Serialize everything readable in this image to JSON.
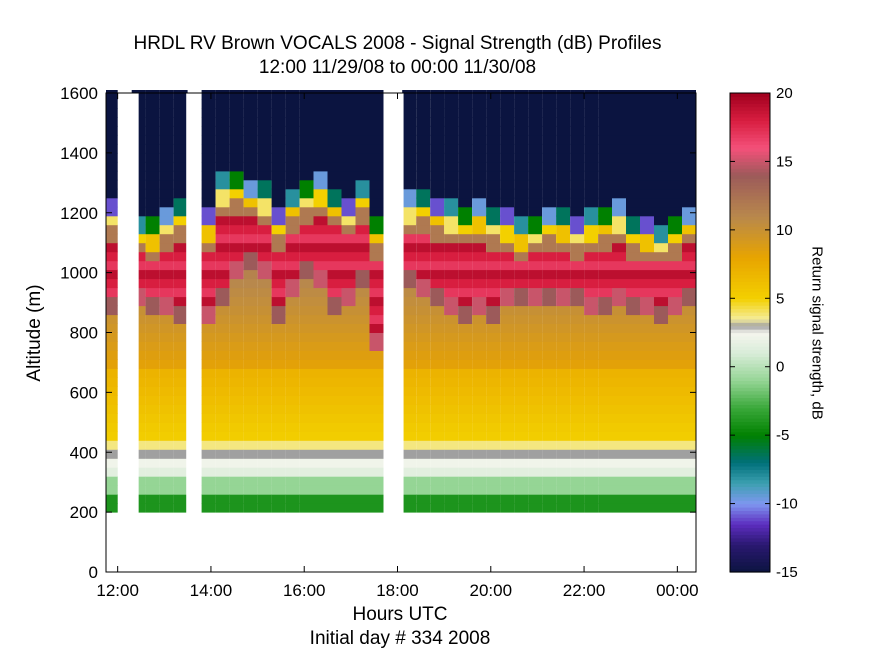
{
  "chart_data": {
    "type": "heatmap",
    "title": "HRDL RV Brown VOCALS 2008 - Signal Strength (dB) Profiles",
    "subtitle": "12:00 11/29/08 to 00:00 11/30/08",
    "xlabel": "Hours UTC",
    "ylabel": "Altitude (m)",
    "footer": "Initial day # 334  2008",
    "colorbar_label": "Return signal strength, dB",
    "x_tick_labels": [
      "12:00",
      "14:00",
      "16:00",
      "18:00",
      "20:00",
      "22:00",
      "00:00"
    ],
    "x_tick_hours": [
      12,
      14,
      16,
      18,
      20,
      22,
      24
    ],
    "xlim": [
      11.75,
      24.4
    ],
    "y_ticks": [
      0,
      200,
      400,
      600,
      800,
      1000,
      1200,
      1400,
      1600
    ],
    "ylim": [
      0,
      1600
    ],
    "colorbar_ticks": [
      20,
      15,
      10,
      5,
      0,
      -5,
      -10,
      -15
    ],
    "clim": [
      -15,
      20
    ],
    "colormap_stops": [
      {
        "v": -15,
        "color": "#0b1440"
      },
      {
        "v": -13,
        "color": "#2a1870"
      },
      {
        "v": -11.5,
        "color": "#5c2dbf"
      },
      {
        "v": -10,
        "color": "#7f97f0"
      },
      {
        "v": -8.5,
        "color": "#3ca0b0"
      },
      {
        "v": -7,
        "color": "#00707a"
      },
      {
        "v": -5,
        "color": "#008000"
      },
      {
        "v": -3,
        "color": "#3aa83a"
      },
      {
        "v": -1,
        "color": "#95d595"
      },
      {
        "v": 1,
        "color": "#d8ecd8"
      },
      {
        "v": 2.5,
        "color": "#f5f5ee"
      },
      {
        "v": 3,
        "color": "#a0a0a0"
      },
      {
        "v": 3.5,
        "color": "#f4ec9a"
      },
      {
        "v": 5,
        "color": "#f3d000"
      },
      {
        "v": 8,
        "color": "#e8a400"
      },
      {
        "v": 11,
        "color": "#b8884c"
      },
      {
        "v": 14,
        "color": "#9c5a5a"
      },
      {
        "v": 16,
        "color": "#f4507a"
      },
      {
        "v": 18,
        "color": "#d81e40"
      },
      {
        "v": 20,
        "color": "#a0001e"
      }
    ],
    "grid": false,
    "data_alt_range": [
      200,
      1600
    ],
    "bin_width_hours": 0.2,
    "profiles": [
      {
        "hour": 11.8,
        "top": 1180,
        "pbl": 850
      },
      {
        "hour": 12.4,
        "top": 1130,
        "pbl": 860
      },
      {
        "hour": 12.7,
        "top": 1110,
        "pbl": 840
      },
      {
        "hour": 13.0,
        "top": 1150,
        "pbl": 830
      },
      {
        "hour": 13.3,
        "top": 1180,
        "pbl": 820
      },
      {
        "hour": 13.9,
        "top": 1140,
        "pbl": 800
      },
      {
        "hour": 14.2,
        "top": 1260,
        "pbl": 880
      },
      {
        "hour": 14.5,
        "top": 1270,
        "pbl": 950
      },
      {
        "hour": 14.8,
        "top": 1250,
        "pbl": 980
      },
      {
        "hour": 15.1,
        "top": 1230,
        "pbl": 950
      },
      {
        "hour": 15.4,
        "top": 1150,
        "pbl": 820
      },
      {
        "hour": 15.7,
        "top": 1210,
        "pbl": 900
      },
      {
        "hour": 16.0,
        "top": 1240,
        "pbl": 950
      },
      {
        "hour": 16.3,
        "top": 1260,
        "pbl": 920
      },
      {
        "hour": 16.6,
        "top": 1220,
        "pbl": 850
      },
      {
        "hour": 16.9,
        "top": 1190,
        "pbl": 870
      },
      {
        "hour": 17.2,
        "top": 1240,
        "pbl": 920
      },
      {
        "hour": 17.5,
        "top": 1120,
        "pbl": 720
      },
      {
        "hour": 18.2,
        "top": 1200,
        "pbl": 920
      },
      {
        "hour": 18.5,
        "top": 1210,
        "pbl": 900
      },
      {
        "hour": 18.8,
        "top": 1180,
        "pbl": 880
      },
      {
        "hour": 19.1,
        "top": 1170,
        "pbl": 850
      },
      {
        "hour": 19.4,
        "top": 1160,
        "pbl": 820
      },
      {
        "hour": 19.7,
        "top": 1170,
        "pbl": 830
      },
      {
        "hour": 20.0,
        "top": 1150,
        "pbl": 800
      },
      {
        "hour": 20.3,
        "top": 1140,
        "pbl": 860
      },
      {
        "hour": 20.6,
        "top": 1110,
        "pbl": 880
      },
      {
        "hour": 20.9,
        "top": 1130,
        "pbl": 870
      },
      {
        "hour": 21.2,
        "top": 1150,
        "pbl": 860
      },
      {
        "hour": 21.5,
        "top": 1140,
        "pbl": 870
      },
      {
        "hour": 21.8,
        "top": 1120,
        "pbl": 860
      },
      {
        "hour": 22.1,
        "top": 1140,
        "pbl": 850
      },
      {
        "hour": 22.4,
        "top": 1150,
        "pbl": 840
      },
      {
        "hour": 22.7,
        "top": 1170,
        "pbl": 860
      },
      {
        "hour": 23.0,
        "top": 1120,
        "pbl": 840
      },
      {
        "hour": 23.3,
        "top": 1110,
        "pbl": 830
      },
      {
        "hour": 23.6,
        "top": 1100,
        "pbl": 820
      },
      {
        "hour": 23.9,
        "top": 1120,
        "pbl": 850
      },
      {
        "hour": 24.2,
        "top": 1160,
        "pbl": 880
      }
    ],
    "gaps_hours": [
      [
        12.13,
        12.45
      ],
      [
        13.47,
        13.78
      ],
      [
        17.8,
        18.13
      ]
    ]
  }
}
